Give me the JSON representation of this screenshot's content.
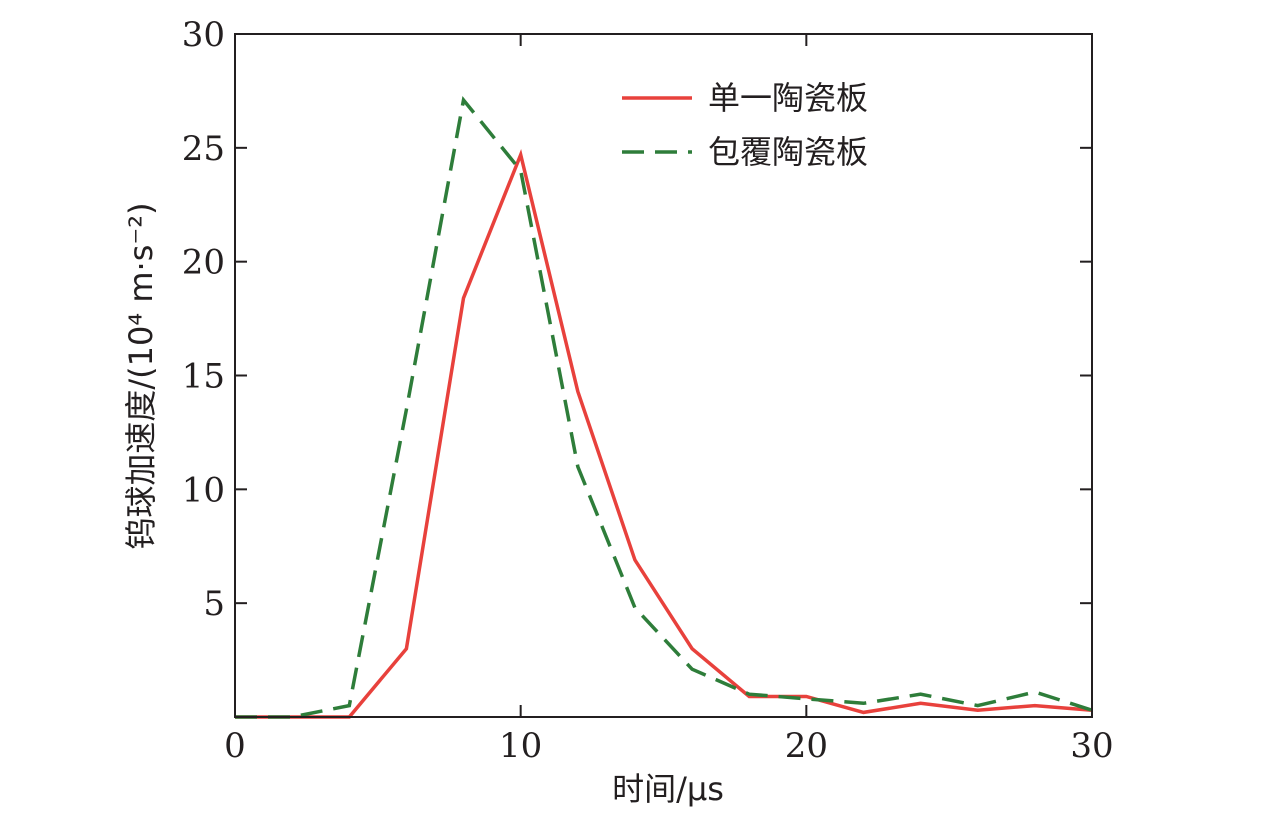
{
  "chart_data": {
    "type": "line",
    "xlabel": "时间/μs",
    "ylabel": "钨球加速度/(10⁴ m·s⁻²)",
    "xlim": [
      0,
      30
    ],
    "ylim": [
      0,
      30
    ],
    "xticks": [
      0,
      10,
      20,
      30
    ],
    "yticks": [
      5,
      10,
      15,
      20,
      25,
      30
    ],
    "grid": false,
    "legend_position": "top-right",
    "series": [
      {
        "name": "单一陶瓷板",
        "color": "#e8413c",
        "dash": "solid",
        "x": [
          0,
          2,
          4,
          6,
          8,
          10,
          12,
          14,
          16,
          18,
          20,
          22,
          24,
          26,
          28,
          30
        ],
        "y": [
          0,
          0,
          0,
          3.0,
          18.4,
          24.7,
          14.3,
          6.9,
          3.0,
          0.9,
          0.9,
          0.2,
          0.6,
          0.3,
          0.5,
          0.3
        ]
      },
      {
        "name": "包覆陶瓷板",
        "color": "#2e7d3a",
        "dash": "dashed",
        "x": [
          0,
          2,
          4,
          6,
          8,
          10,
          12,
          14,
          16,
          18,
          20,
          22,
          24,
          26,
          28,
          30
        ],
        "y": [
          0,
          0,
          0.5,
          13.5,
          27.1,
          24.0,
          11.0,
          4.8,
          2.1,
          1.0,
          0.8,
          0.6,
          1.0,
          0.5,
          1.1,
          0.3
        ]
      }
    ]
  }
}
